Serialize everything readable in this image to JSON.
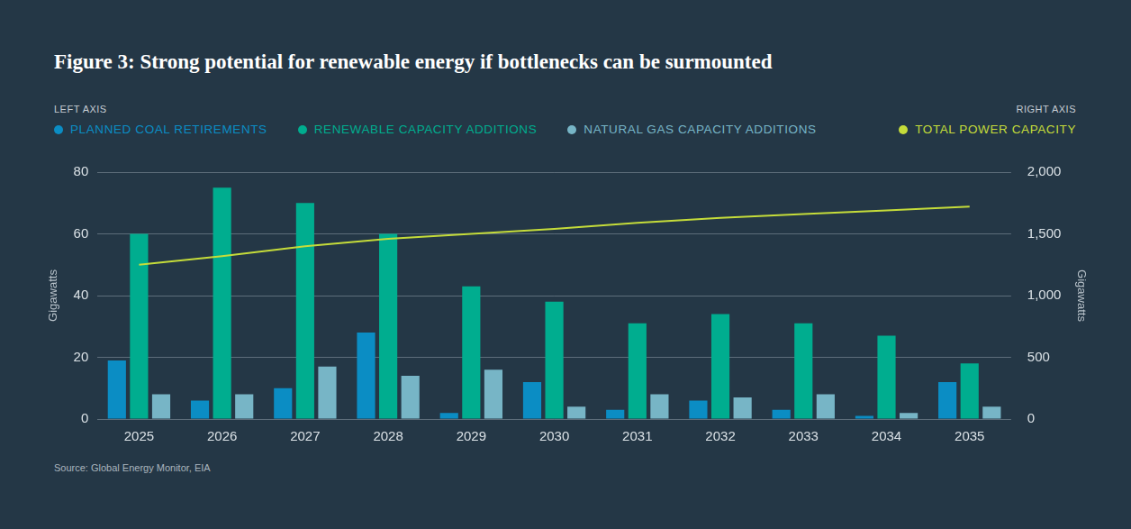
{
  "chart_data": {
    "type": "bar",
    "title": "Figure 3: Strong potential for renewable energy if bottlenecks can be surmounted",
    "annotations": [
      "LEFT AXIS",
      "RIGHT AXIS"
    ],
    "source": "Source: Global Energy Monitor, EIA",
    "ylabel": "Gigawatts",
    "y2label": "Gigawatts",
    "categories": [
      "2025",
      "2026",
      "2027",
      "2028",
      "2029",
      "2030",
      "2031",
      "2032",
      "2033",
      "2034",
      "2035"
    ],
    "series": [
      {
        "name": "PLANNED COAL RETIREMENTS",
        "type": "bar",
        "color": "#0b8dc4",
        "values": [
          19,
          6,
          10,
          28,
          2,
          12,
          3,
          6,
          3,
          1,
          12
        ]
      },
      {
        "name": "RENEWABLE CAPACITY ADDITIONS",
        "type": "bar",
        "color": "#00ad8f",
        "values": [
          60,
          75,
          70,
          60,
          43,
          38,
          31,
          34,
          31,
          27,
          18
        ]
      },
      {
        "name": "NATURAL GAS CAPACITY ADDITIONS",
        "type": "bar",
        "color": "#77b5c6",
        "values": [
          8,
          8,
          17,
          14,
          16,
          4,
          8,
          7,
          8,
          2,
          4
        ]
      },
      {
        "name": "TOTAL POWER CAPACITY",
        "type": "line",
        "axis": "y2",
        "color": "#c5dc3a",
        "values": [
          1250,
          1320,
          1400,
          1460,
          1500,
          1540,
          1590,
          1630,
          1660,
          1690,
          1720
        ]
      }
    ],
    "ylim": [
      0,
      80
    ],
    "yticks": [
      0,
      20,
      40,
      60,
      80
    ],
    "y2lim": [
      0,
      2000
    ],
    "y2ticks": [
      0,
      {
        "value": 500,
        "label": "500"
      },
      {
        "value": 1000,
        "label": "1,000"
      },
      {
        "value": 1500,
        "label": "1,500"
      },
      {
        "value": 2000,
        "label": "2,000"
      }
    ],
    "grid": true,
    "legend": "top"
  }
}
